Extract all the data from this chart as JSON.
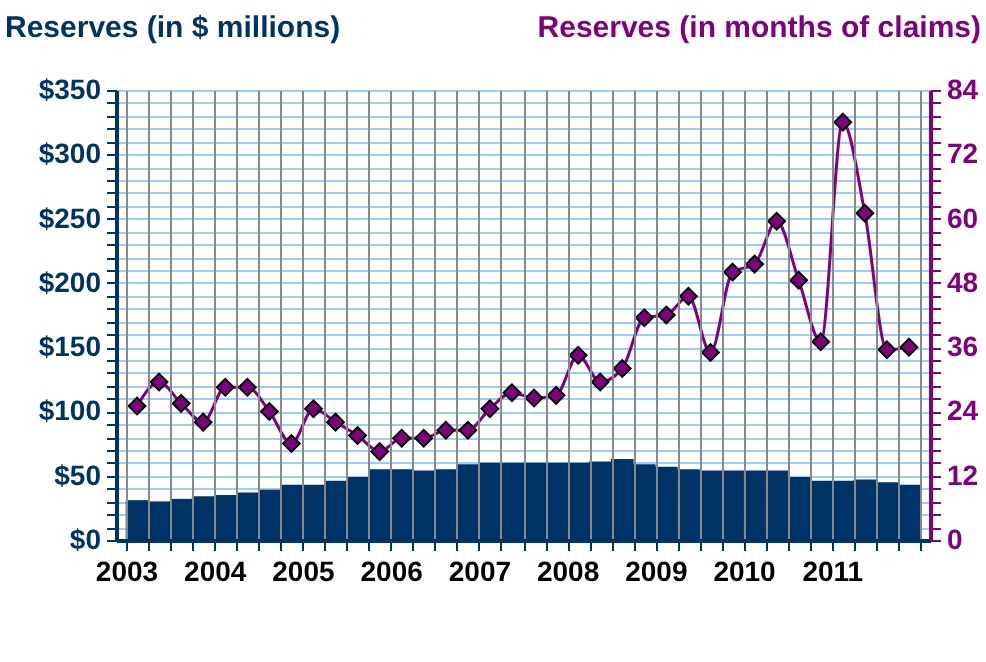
{
  "chart_data": {
    "type": "bar",
    "ylabel": "Reserves (in $ millions)",
    "y2label": "Reserves (in months of claims)",
    "x": [
      2003.125,
      2003.375,
      2003.625,
      2003.875,
      2004.125,
      2004.375,
      2004.625,
      2004.875,
      2005.125,
      2005.375,
      2005.625,
      2005.875,
      2006.125,
      2006.375,
      2006.625,
      2006.875,
      2007.125,
      2007.375,
      2007.625,
      2007.875,
      2008.125,
      2008.375,
      2008.625,
      2008.875,
      2009.125,
      2009.375,
      2009.625,
      2009.875,
      2010.125,
      2010.375,
      2010.625,
      2010.875,
      2011.125,
      2011.375,
      2011.625,
      2011.875
    ],
    "series": [
      {
        "color": "#003366",
        "values": [
          31,
          30,
          32,
          34,
          35,
          37,
          39,
          43,
          43,
          46,
          49,
          55,
          55,
          54,
          55,
          59,
          60,
          60,
          60,
          60,
          60,
          61,
          63,
          59,
          57,
          55,
          54,
          54,
          54,
          54,
          49,
          46,
          46,
          47,
          45,
          43
        ]
      },
      {
        "type": "line",
        "axis": "y2",
        "color": "#800080",
        "marker": "diamond",
        "values": [
          25,
          29.5,
          25.5,
          22,
          28.5,
          28.5,
          24,
          18,
          24.5,
          22,
          19.5,
          16.5,
          19,
          19,
          20.5,
          20.5,
          24.5,
          27.5,
          26.5,
          27,
          34.5,
          29.5,
          32,
          41.5,
          42,
          45.5,
          35,
          50,
          51.5,
          59.5,
          48.5,
          37,
          78,
          61,
          35.5,
          36
        ]
      }
    ],
    "xlim": [
      2003,
      2012
    ],
    "xticks": [
      2003,
      {
        "value": 2003.25,
        "label": null
      },
      {
        "value": 2003.5,
        "label": null
      },
      {
        "value": 2003.75,
        "label": null
      },
      2004,
      {
        "value": 2004.25,
        "label": null
      },
      {
        "value": 2004.5,
        "label": null
      },
      {
        "value": 2004.75,
        "label": null
      },
      2005,
      {
        "value": 2005.25,
        "label": null
      },
      {
        "value": 2005.5,
        "label": null
      },
      {
        "value": 2005.75,
        "label": null
      },
      2006,
      {
        "value": 2006.25,
        "label": null
      },
      {
        "value": 2006.5,
        "label": null
      },
      {
        "value": 2006.75,
        "label": null
      },
      2007,
      {
        "value": 2007.25,
        "label": null
      },
      {
        "value": 2007.5,
        "label": null
      },
      {
        "value": 2007.75,
        "label": null
      },
      2008,
      {
        "value": 2008.25,
        "label": null
      },
      {
        "value": 2008.5,
        "label": null
      },
      {
        "value": 2008.75,
        "label": null
      },
      2009,
      {
        "value": 2009.25,
        "label": null
      },
      {
        "value": 2009.5,
        "label": null
      },
      {
        "value": 2009.75,
        "label": null
      },
      2010,
      {
        "value": 2010.25,
        "label": null
      },
      {
        "value": 2010.5,
        "label": null
      },
      {
        "value": 2010.75,
        "label": null
      },
      2011,
      {
        "value": 2011.25,
        "label": null
      },
      {
        "value": 2011.5,
        "label": null
      },
      {
        "value": 2011.75,
        "label": null
      },
      {
        "value": 2012,
        "label": null
      }
    ],
    "ylim": [
      0,
      350
    ],
    "yticks": [
      {
        "value": 0,
        "label": "$0"
      },
      {
        "value": 10,
        "label": null
      },
      {
        "value": 20,
        "label": null
      },
      {
        "value": 30,
        "label": null
      },
      {
        "value": 40,
        "label": null
      },
      {
        "value": 50,
        "label": "$50"
      },
      {
        "value": 60,
        "label": null
      },
      {
        "value": 70,
        "label": null
      },
      {
        "value": 80,
        "label": null
      },
      {
        "value": 90,
        "label": null
      },
      {
        "value": 100,
        "label": "$100"
      },
      {
        "value": 110,
        "label": null
      },
      {
        "value": 120,
        "label": null
      },
      {
        "value": 130,
        "label": null
      },
      {
        "value": 140,
        "label": null
      },
      {
        "value": 150,
        "label": "$150"
      },
      {
        "value": 160,
        "label": null
      },
      {
        "value": 170,
        "label": null
      },
      {
        "value": 180,
        "label": null
      },
      {
        "value": 190,
        "label": null
      },
      {
        "value": 200,
        "label": "$200"
      },
      {
        "value": 210,
        "label": null
      },
      {
        "value": 220,
        "label": null
      },
      {
        "value": 230,
        "label": null
      },
      {
        "value": 240,
        "label": null
      },
      {
        "value": 250,
        "label": "$250"
      },
      {
        "value": 260,
        "label": null
      },
      {
        "value": 270,
        "label": null
      },
      {
        "value": 280,
        "label": null
      },
      {
        "value": 290,
        "label": null
      },
      {
        "value": 300,
        "label": "$300"
      },
      {
        "value": 310,
        "label": null
      },
      {
        "value": 320,
        "label": null
      },
      {
        "value": 330,
        "label": null
      },
      {
        "value": 340,
        "label": null
      },
      {
        "value": 350,
        "label": "$350"
      }
    ],
    "y2lim": [
      0,
      84
    ],
    "y2ticks": [
      0,
      {
        "value": 2.4,
        "label": null
      },
      {
        "value": 4.8,
        "label": null
      },
      {
        "value": 7.2,
        "label": null
      },
      {
        "value": 9.6,
        "label": null
      },
      12,
      {
        "value": 14.4,
        "label": null
      },
      {
        "value": 16.8,
        "label": null
      },
      {
        "value": 19.2,
        "label": null
      },
      {
        "value": 21.6,
        "label": null
      },
      24,
      {
        "value": 26.4,
        "label": null
      },
      {
        "value": 28.8,
        "label": null
      },
      {
        "value": 31.2,
        "label": null
      },
      {
        "value": 33.6,
        "label": null
      },
      36,
      {
        "value": 38.4,
        "label": null
      },
      {
        "value": 40.8,
        "label": null
      },
      {
        "value": 43.2,
        "label": null
      },
      {
        "value": 45.6,
        "label": null
      },
      48,
      {
        "value": 50.4,
        "label": null
      },
      {
        "value": 52.8,
        "label": null
      },
      {
        "value": 55.2,
        "label": null
      },
      {
        "value": 57.6,
        "label": null
      },
      60,
      {
        "value": 62.4,
        "label": null
      },
      {
        "value": 64.8,
        "label": null
      },
      {
        "value": 67.2,
        "label": null
      },
      {
        "value": 69.6,
        "label": null
      },
      72,
      {
        "value": 74.4,
        "label": null
      },
      {
        "value": 76.8,
        "label": null
      },
      {
        "value": 79.2,
        "label": null
      },
      {
        "value": 81.6,
        "label": null
      },
      84
    ],
    "grid": true
  }
}
